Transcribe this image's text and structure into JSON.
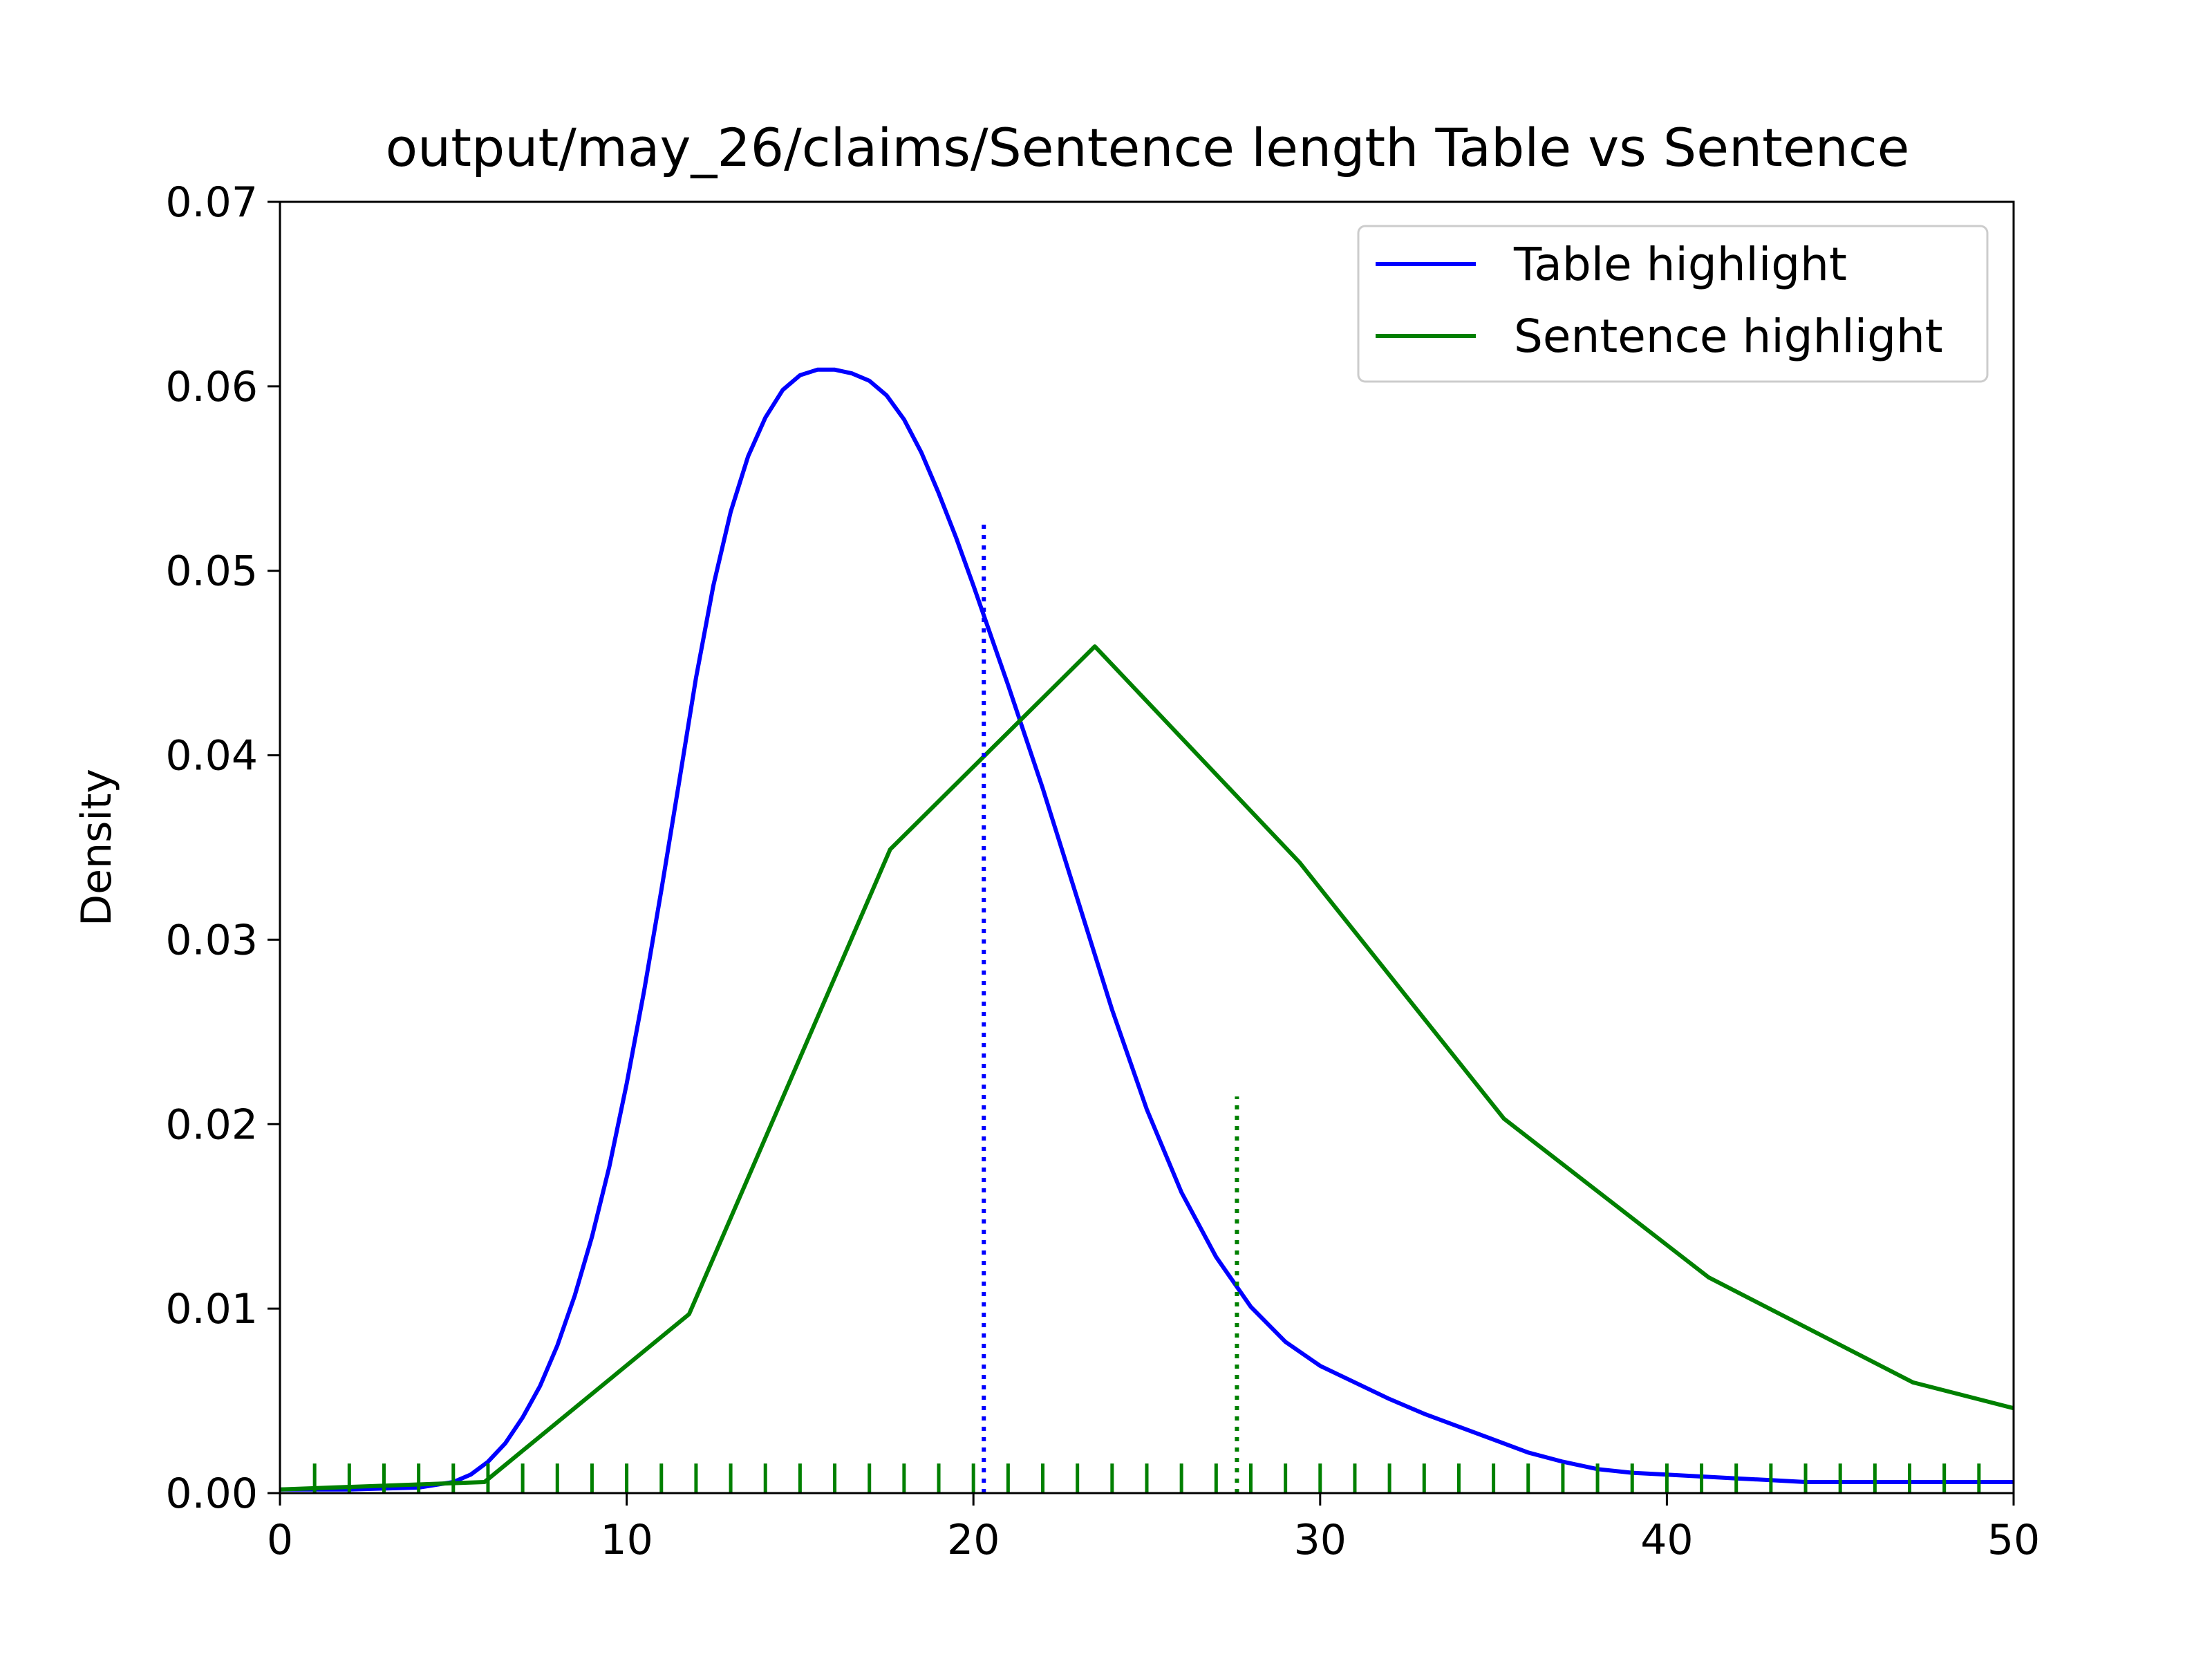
{
  "chart_data": {
    "type": "line",
    "title": "output/may_26/claims/Sentence length Table vs Sentence",
    "xlabel": "",
    "ylabel": "Density",
    "xlim": [
      0,
      50
    ],
    "ylim": [
      0,
      0.07
    ],
    "xticks": [
      0,
      10,
      20,
      30,
      40,
      50
    ],
    "xtick_labels": [
      "0",
      "10",
      "20",
      "30",
      "40",
      "50"
    ],
    "yticks": [
      0,
      0.01,
      0.02,
      0.03,
      0.04,
      0.05,
      0.06,
      0.07
    ],
    "ytick_labels": [
      "0.00",
      "0.01",
      "0.02",
      "0.03",
      "0.04",
      "0.05",
      "0.06",
      "0.07"
    ],
    "grid": false,
    "legend_position": "top-right",
    "series": [
      {
        "name": "Table highlight",
        "color": "#0000ff",
        "x": [
          0,
          2,
          4,
          5,
          5.5,
          6,
          6.5,
          7,
          7.5,
          8,
          8.5,
          9,
          9.5,
          10,
          10.5,
          11,
          11.5,
          12,
          12.5,
          13,
          13.5,
          14,
          14.5,
          15,
          15.5,
          16,
          16.5,
          17,
          17.5,
          18,
          18.5,
          19,
          19.5,
          20,
          21,
          22,
          23,
          24,
          25,
          26,
          27,
          28,
          29,
          30,
          31,
          32,
          33,
          34,
          35,
          36,
          37,
          38,
          39,
          40,
          41,
          42,
          43,
          44,
          45,
          46,
          47,
          48,
          49,
          50
        ],
        "y": [
          0.0002,
          0.0002,
          0.0003,
          0.0006,
          0.001,
          0.0017,
          0.0027,
          0.0041,
          0.0058,
          0.008,
          0.0107,
          0.0139,
          0.0177,
          0.0222,
          0.0272,
          0.0327,
          0.0384,
          0.0442,
          0.0492,
          0.0532,
          0.0562,
          0.0583,
          0.0598,
          0.0606,
          0.0609,
          0.0609,
          0.0607,
          0.0603,
          0.0595,
          0.0582,
          0.0564,
          0.0542,
          0.0518,
          0.0492,
          0.0438,
          0.0382,
          0.0322,
          0.0262,
          0.0208,
          0.0163,
          0.0128,
          0.0101,
          0.0082,
          0.0069,
          0.006,
          0.0051,
          0.0043,
          0.0036,
          0.0029,
          0.0022,
          0.0017,
          0.0013,
          0.0011,
          0.001,
          0.0009,
          0.0008,
          0.0007,
          0.0006,
          0.0006,
          0.0006,
          0.0006,
          0.0006,
          0.0006,
          0.0006
        ],
        "y_note": "density values approximate"
      },
      {
        "name": "Sentence highlight",
        "color": "#008000",
        "x": [
          0,
          5.9,
          11.8,
          17.6,
          23.5,
          29.4,
          35.3,
          41.2,
          47.1,
          50
        ],
        "y": [
          0.0002,
          0.0006,
          0.0097,
          0.0349,
          0.0459,
          0.0342,
          0.0203,
          0.0117,
          0.006,
          0.0046
        ]
      }
    ],
    "annotations": [
      {
        "type": "vline",
        "x": 20.3,
        "y_top": 0.0525,
        "color": "#0000ff",
        "style": "dotted"
      },
      {
        "type": "vline",
        "x": 27.6,
        "y_top": 0.0215,
        "color": "#008000",
        "style": "dotted"
      }
    ],
    "rug": {
      "color": "#008000",
      "height": 0.0016,
      "x": [
        1,
        2,
        3,
        4,
        5,
        6,
        7,
        8,
        9,
        10,
        11,
        12,
        13,
        14,
        15,
        16,
        17,
        18,
        19,
        20,
        21,
        22,
        23,
        24,
        25,
        26,
        27,
        28,
        29,
        30,
        31,
        32,
        33,
        34,
        35,
        36,
        37,
        38,
        39,
        40,
        41,
        42,
        43,
        44,
        45,
        46,
        47,
        48,
        49
      ]
    }
  }
}
